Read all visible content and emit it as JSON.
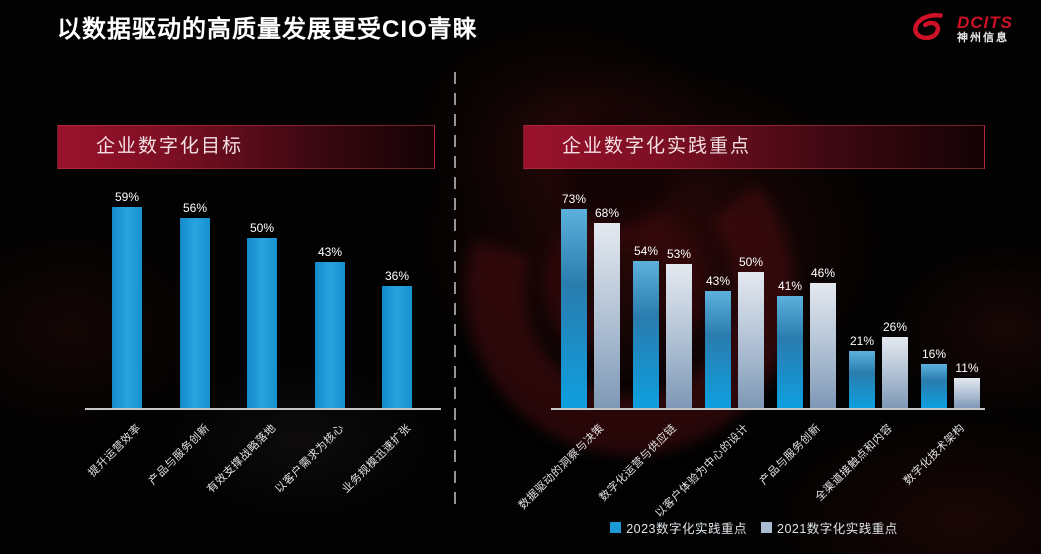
{
  "header": {
    "title": "以数据驱动的高质量发展更受CIO青睐"
  },
  "logo": {
    "brand": "DCITS",
    "company": "神州信息",
    "brand_color": "#CE1126"
  },
  "panels": {
    "left_title": "企业数字化目标",
    "right_title": "企业数字化实践重点"
  },
  "chart_data": [
    {
      "type": "bar",
      "title": "企业数字化目标",
      "categories": [
        "提升运营效率",
        "产品与服务创新",
        "有效支撑战略落地",
        "以客户需求为核心",
        "业务规模迅速扩张"
      ],
      "values": [
        59,
        56,
        50,
        43,
        36
      ],
      "value_suffix": "%",
      "bar_color": "#1C9AD6",
      "ylim": [
        0,
        70
      ],
      "grid": false,
      "legend_position": "none"
    },
    {
      "type": "bar",
      "title": "企业数字化实践重点",
      "categories": [
        "数据驱动的洞察与决策",
        "数字化运营与供应链",
        "以客户体验为中心的设计",
        "产品与服务创新",
        "全渠道接触点和内容",
        "数字化技术架构"
      ],
      "series": [
        {
          "name": "2023数字化实践重点",
          "color": "#1C9AD6",
          "values": [
            73,
            54,
            43,
            41,
            21,
            16
          ]
        },
        {
          "name": "2021数字化实践重点",
          "color": "#A9BCD1",
          "values": [
            68,
            53,
            50,
            46,
            26,
            11
          ]
        }
      ],
      "value_suffix": "%",
      "ylim": [
        0,
        80
      ],
      "grid": false,
      "legend_position": "bottom"
    }
  ]
}
